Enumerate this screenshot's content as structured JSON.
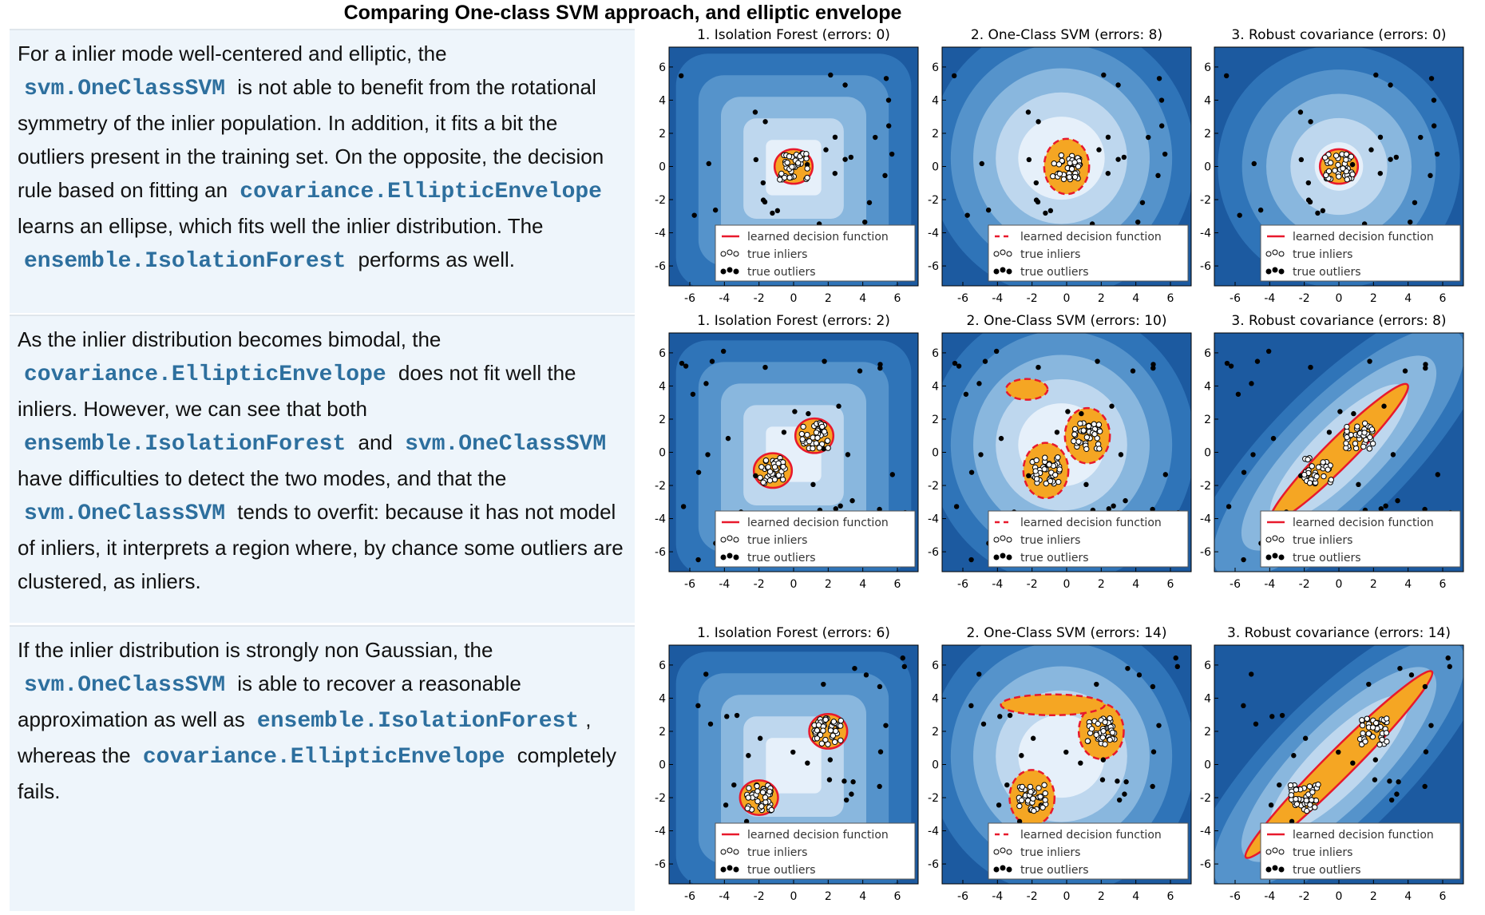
{
  "title": "Comparing One-class SVM approach, and elliptic envelope",
  "rows": [
    {
      "text": [
        {
          "text": "For a inlier mode well-centered and elliptic, the "
        },
        {
          "code": "svm.OneClassSVM"
        },
        {
          "text": " is not able to benefit from the rotational symmetry of the inlier population. In addition, it fits a bit the outliers present in the training set. On the opposite, the decision rule based on fitting an "
        },
        {
          "code": "covariance.EllipticEnvelope"
        },
        {
          "text": " learns an ellipse, which fits well the inlier distribution. The "
        },
        {
          "code": "ensemble.IsolationForest"
        },
        {
          "text": " performs as well."
        }
      ],
      "panels": [
        {
          "title": "1. Isolation Forest (errors: 0)"
        },
        {
          "title": "2. One-Class SVM (errors: 8)"
        },
        {
          "title": "3. Robust covariance (errors: 0)"
        }
      ]
    },
    {
      "text": [
        {
          "text": "As the inlier distribution becomes bimodal, the "
        },
        {
          "code": "covariance.EllipticEnvelope"
        },
        {
          "text": " does not fit well the inliers. However, we can see that both "
        },
        {
          "code": "ensemble.IsolationForest"
        },
        {
          "text": " and "
        },
        {
          "code": "svm.OneClassSVM"
        },
        {
          "text": " have difficulties to detect the two modes, and that the "
        },
        {
          "code": "svm.OneClassSVM"
        },
        {
          "text": " tends to overfit: because it has not model of inliers, it interprets a region where, by chance some outliers are clustered, as inliers."
        }
      ],
      "panels": [
        {
          "title": "1. Isolation Forest (errors: 2)"
        },
        {
          "title": "2. One-Class SVM (errors: 10)"
        },
        {
          "title": "3. Robust covariance (errors: 8)"
        }
      ]
    },
    {
      "text": [
        {
          "text": "If the inlier distribution is strongly non Gaussian, the "
        },
        {
          "code": "svm.OneClassSVM"
        },
        {
          "text": " is able to recover a reasonable approximation as well as "
        },
        {
          "code": "ensemble.IsolationForest"
        },
        {
          "text": ", whereas the "
        },
        {
          "code": "covariance.EllipticEnvelope"
        },
        {
          "text": " completely fails."
        }
      ],
      "panels": [
        {
          "title": "1. Isolation Forest (errors: 6)"
        },
        {
          "title": "2. One-Class SVM (errors: 14)"
        },
        {
          "title": "3. Robust covariance (errors: 14)"
        }
      ]
    }
  ],
  "axis_ticks": [
    -6,
    -4,
    -2,
    0,
    2,
    4,
    6
  ],
  "legend": [
    "learned decision function",
    "true inliers",
    "true outliers"
  ]
}
